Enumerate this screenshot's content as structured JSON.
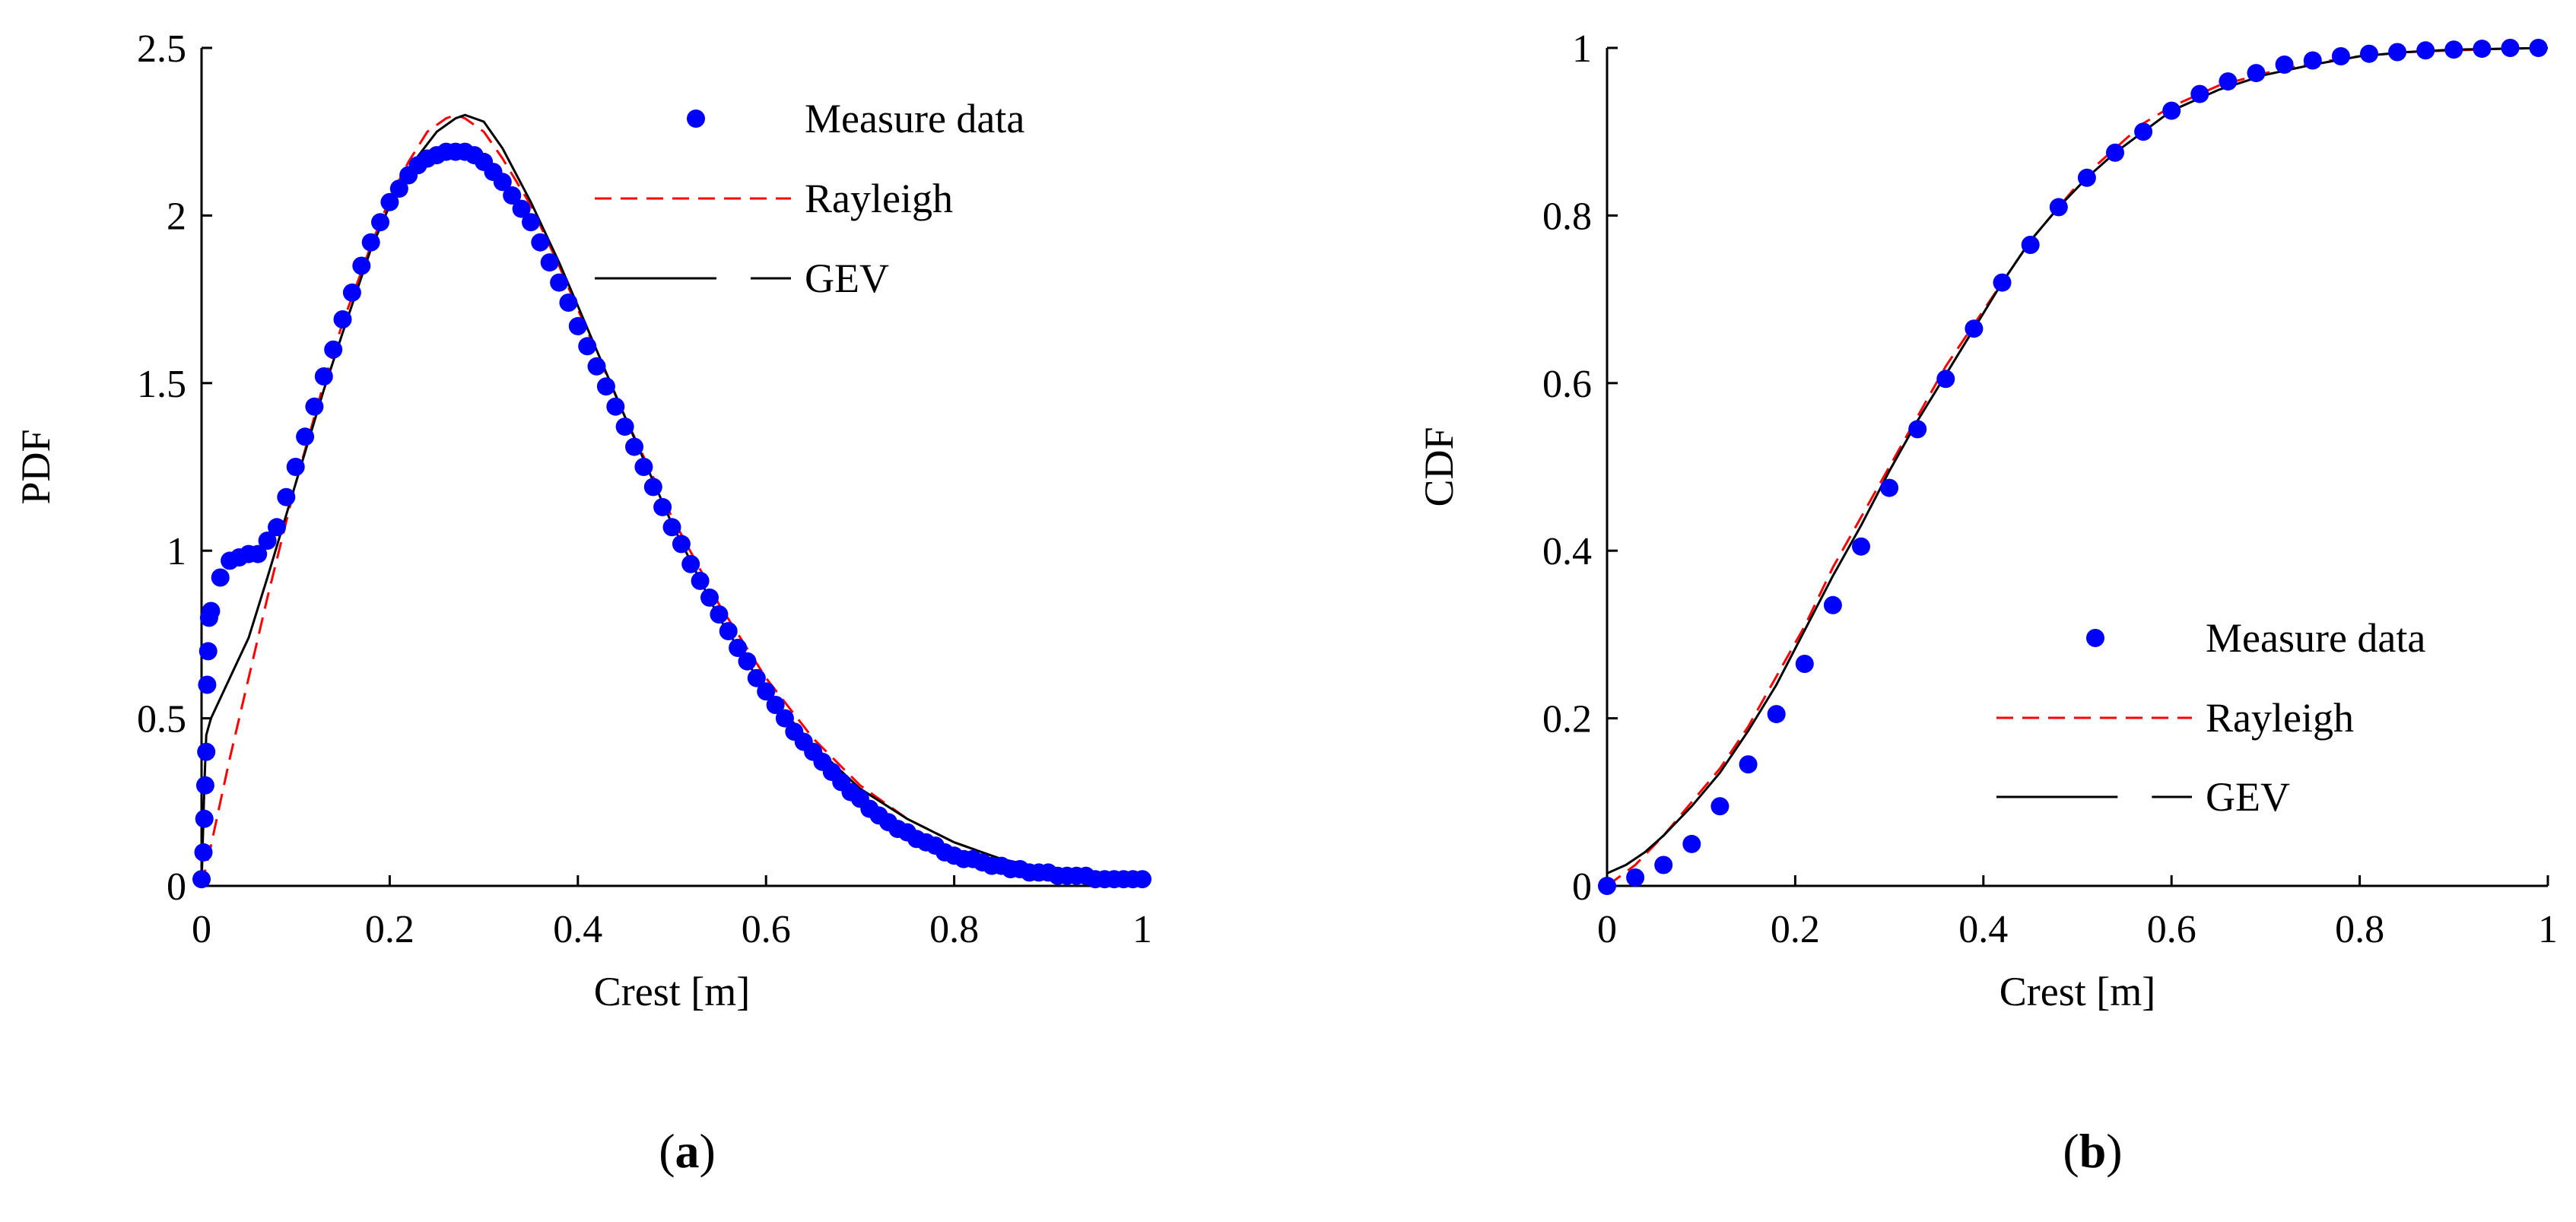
{
  "colors": {
    "measure": "#0000ff",
    "rayleigh": "#ff0000",
    "gev": "#000000",
    "axis": "#000000"
  },
  "chart_data": [
    {
      "id": "a",
      "type": "scatter+line",
      "panel_label": "a",
      "panel_open": "(",
      "panel_close": ")",
      "xlabel": "Crest [m]",
      "ylabel": "PDF",
      "xlim": [
        0,
        1
      ],
      "ylim": [
        0,
        2.5
      ],
      "xticks": [
        0,
        0.2,
        0.4,
        0.6,
        0.8,
        1
      ],
      "xtick_labels": [
        "0",
        "0.2",
        "0.4",
        "0.6",
        "0.8",
        "1"
      ],
      "yticks": [
        0,
        0.5,
        1,
        1.5,
        2,
        2.5
      ],
      "ytick_labels": [
        "0",
        "0.5",
        "1",
        "1.5",
        "2",
        "2.5"
      ],
      "legend": {
        "position": "top-right",
        "entries": [
          "Measure data",
          "Rayleigh",
          "GEV"
        ]
      },
      "series": [
        {
          "name": "Measure data",
          "style": "markers",
          "x": [
            0.0,
            0.002,
            0.003,
            0.004,
            0.005,
            0.006,
            0.007,
            0.008,
            0.01,
            0.02,
            0.03,
            0.04,
            0.05,
            0.06,
            0.07,
            0.08,
            0.09,
            0.1,
            0.11,
            0.12,
            0.13,
            0.14,
            0.15,
            0.16,
            0.17,
            0.18,
            0.19,
            0.2,
            0.21,
            0.22,
            0.23,
            0.24,
            0.25,
            0.26,
            0.27,
            0.28,
            0.29,
            0.3,
            0.31,
            0.32,
            0.33,
            0.34,
            0.35,
            0.36,
            0.37,
            0.38,
            0.39,
            0.4,
            0.41,
            0.42,
            0.43,
            0.44,
            0.45,
            0.46,
            0.47,
            0.48,
            0.49,
            0.5,
            0.51,
            0.52,
            0.53,
            0.54,
            0.55,
            0.56,
            0.57,
            0.58,
            0.59,
            0.6,
            0.61,
            0.62,
            0.63,
            0.64,
            0.65,
            0.66,
            0.67,
            0.68,
            0.69,
            0.7,
            0.71,
            0.72,
            0.73,
            0.74,
            0.75,
            0.76,
            0.77,
            0.78,
            0.79,
            0.8,
            0.81,
            0.82,
            0.83,
            0.84,
            0.85,
            0.86,
            0.87,
            0.88,
            0.89,
            0.9,
            0.91,
            0.92,
            0.93,
            0.94,
            0.95,
            0.96,
            0.97,
            0.98,
            0.99,
            1.0
          ],
          "y": [
            0.02,
            0.1,
            0.2,
            0.3,
            0.4,
            0.6,
            0.7,
            0.8,
            0.82,
            0.92,
            0.97,
            0.98,
            0.99,
            0.99,
            1.03,
            1.07,
            1.16,
            1.25,
            1.34,
            1.43,
            1.52,
            1.6,
            1.69,
            1.77,
            1.85,
            1.92,
            1.98,
            2.04,
            2.08,
            2.12,
            2.15,
            2.17,
            2.18,
            2.19,
            2.19,
            2.19,
            2.18,
            2.16,
            2.13,
            2.1,
            2.06,
            2.02,
            1.98,
            1.92,
            1.86,
            1.8,
            1.74,
            1.67,
            1.61,
            1.55,
            1.49,
            1.43,
            1.37,
            1.31,
            1.25,
            1.19,
            1.13,
            1.07,
            1.02,
            0.96,
            0.91,
            0.86,
            0.81,
            0.76,
            0.71,
            0.67,
            0.62,
            0.58,
            0.54,
            0.5,
            0.46,
            0.43,
            0.4,
            0.37,
            0.34,
            0.31,
            0.28,
            0.26,
            0.23,
            0.21,
            0.19,
            0.17,
            0.16,
            0.14,
            0.13,
            0.12,
            0.1,
            0.09,
            0.08,
            0.08,
            0.07,
            0.06,
            0.06,
            0.05,
            0.05,
            0.04,
            0.04,
            0.04,
            0.03,
            0.03,
            0.03,
            0.03,
            0.02,
            0.02,
            0.02,
            0.02,
            0.02,
            0.02
          ]
        },
        {
          "name": "Rayleigh",
          "style": "dashed",
          "x": [
            0,
            0.01,
            0.02,
            0.03,
            0.05,
            0.07,
            0.1,
            0.13,
            0.15,
            0.18,
            0.2,
            0.22,
            0.24,
            0.26,
            0.27,
            0.28,
            0.3,
            0.32,
            0.35,
            0.38,
            0.4,
            0.45,
            0.5,
            0.55,
            0.6,
            0.65,
            0.7,
            0.75,
            0.8,
            0.85,
            0.9,
            0.95,
            1.0
          ],
          "y": [
            0,
            0.12,
            0.25,
            0.38,
            0.62,
            0.86,
            1.2,
            1.5,
            1.68,
            1.91,
            2.05,
            2.16,
            2.25,
            2.29,
            2.3,
            2.29,
            2.25,
            2.17,
            2.03,
            1.85,
            1.72,
            1.4,
            1.1,
            0.84,
            0.62,
            0.44,
            0.3,
            0.2,
            0.13,
            0.08,
            0.05,
            0.03,
            0.02
          ]
        },
        {
          "name": "GEV",
          "style": "solid",
          "x": [
            0,
            0.003,
            0.005,
            0.01,
            0.03,
            0.05,
            0.07,
            0.1,
            0.13,
            0.15,
            0.18,
            0.2,
            0.22,
            0.25,
            0.27,
            0.28,
            0.3,
            0.32,
            0.35,
            0.38,
            0.4,
            0.45,
            0.5,
            0.55,
            0.6,
            0.65,
            0.7,
            0.75,
            0.8,
            0.85,
            0.9,
            0.95,
            1.0
          ],
          "y": [
            0,
            0.3,
            0.45,
            0.5,
            0.62,
            0.74,
            0.92,
            1.2,
            1.48,
            1.65,
            1.9,
            2.03,
            2.14,
            2.25,
            2.29,
            2.3,
            2.28,
            2.2,
            2.04,
            1.86,
            1.73,
            1.4,
            1.08,
            0.8,
            0.58,
            0.42,
            0.29,
            0.2,
            0.13,
            0.08,
            0.05,
            0.03,
            0.02
          ]
        }
      ]
    },
    {
      "id": "b",
      "type": "scatter+line",
      "panel_label": "b",
      "panel_open": "(",
      "panel_close": ")",
      "xlabel": "Crest [m]",
      "ylabel": "CDF",
      "xlim": [
        0,
        1
      ],
      "ylim": [
        0,
        1
      ],
      "xticks": [
        0,
        0.2,
        0.4,
        0.6,
        0.8,
        1
      ],
      "xtick_labels": [
        "0",
        "0.2",
        "0.4",
        "0.6",
        "0.8",
        "1"
      ],
      "yticks": [
        0,
        0.2,
        0.4,
        0.6,
        0.8,
        1
      ],
      "ytick_labels": [
        "0",
        "0.2",
        "0.4",
        "0.6",
        "0.8",
        "1"
      ],
      "legend": {
        "position": "bottom-right",
        "entries": [
          "Measure data",
          "Rayleigh",
          "GEV"
        ]
      },
      "series": [
        {
          "name": "Measure data",
          "style": "markers",
          "x": [
            0.0,
            0.03,
            0.06,
            0.09,
            0.12,
            0.15,
            0.18,
            0.21,
            0.24,
            0.27,
            0.3,
            0.33,
            0.36,
            0.39,
            0.42,
            0.45,
            0.48,
            0.51,
            0.54,
            0.57,
            0.6,
            0.63,
            0.66,
            0.69,
            0.72,
            0.75,
            0.78,
            0.81,
            0.84,
            0.87,
            0.9,
            0.93,
            0.96,
            0.99
          ],
          "y": [
            0.0,
            0.01,
            0.025,
            0.05,
            0.095,
            0.145,
            0.205,
            0.265,
            0.335,
            0.405,
            0.475,
            0.545,
            0.605,
            0.665,
            0.72,
            0.765,
            0.81,
            0.845,
            0.875,
            0.9,
            0.925,
            0.945,
            0.96,
            0.97,
            0.98,
            0.985,
            0.99,
            0.993,
            0.995,
            0.997,
            0.998,
            0.999,
            1.0,
            1.0
          ]
        },
        {
          "name": "Rayleigh",
          "style": "dashed",
          "x": [
            0,
            0.03,
            0.06,
            0.09,
            0.12,
            0.15,
            0.18,
            0.21,
            0.24,
            0.27,
            0.3,
            0.33,
            0.36,
            0.39,
            0.42,
            0.45,
            0.48,
            0.51,
            0.54,
            0.57,
            0.6,
            0.65,
            0.7,
            0.75,
            0.8,
            0.85,
            0.9,
            0.95,
            1.0
          ],
          "y": [
            0,
            0.025,
            0.06,
            0.1,
            0.14,
            0.19,
            0.25,
            0.31,
            0.38,
            0.44,
            0.5,
            0.56,
            0.62,
            0.67,
            0.72,
            0.77,
            0.81,
            0.85,
            0.88,
            0.91,
            0.93,
            0.955,
            0.97,
            0.982,
            0.99,
            0.995,
            0.997,
            0.999,
            1.0
          ]
        },
        {
          "name": "GEV",
          "style": "solid",
          "x": [
            0,
            0.02,
            0.04,
            0.06,
            0.09,
            0.12,
            0.15,
            0.18,
            0.21,
            0.24,
            0.27,
            0.3,
            0.33,
            0.36,
            0.39,
            0.42,
            0.45,
            0.48,
            0.51,
            0.54,
            0.57,
            0.6,
            0.65,
            0.7,
            0.75,
            0.8,
            0.85,
            0.9,
            0.95,
            1.0
          ],
          "y": [
            0.015,
            0.025,
            0.04,
            0.06,
            0.095,
            0.135,
            0.185,
            0.24,
            0.305,
            0.37,
            0.43,
            0.495,
            0.555,
            0.61,
            0.665,
            0.72,
            0.77,
            0.81,
            0.845,
            0.875,
            0.9,
            0.925,
            0.95,
            0.968,
            0.98,
            0.99,
            0.995,
            0.998,
            0.999,
            1.0
          ]
        }
      ]
    }
  ]
}
